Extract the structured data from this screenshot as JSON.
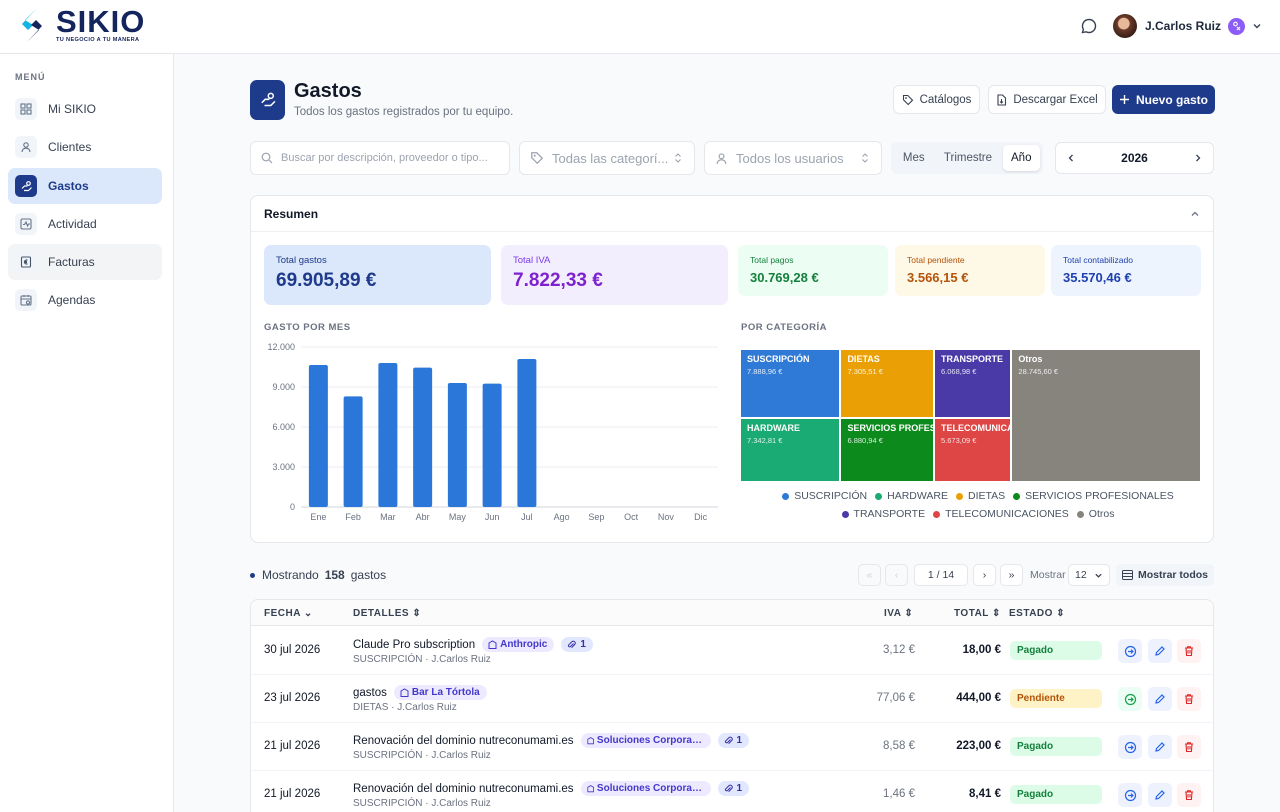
{
  "brand": {
    "name": "SIKIO",
    "tagline": "TU NEGOCIO A TU MANERA"
  },
  "user": {
    "name": "J.Carlos Ruiz"
  },
  "sidebar": {
    "title": "MENÚ",
    "items": [
      {
        "label": "Mi SIKIO",
        "icon": "grid-icon"
      },
      {
        "label": "Clientes",
        "icon": "user-icon"
      },
      {
        "label": "Gastos",
        "icon": "expense-icon",
        "active": true
      },
      {
        "label": "Actividad",
        "icon": "activity-icon"
      },
      {
        "label": "Facturas",
        "icon": "invoice-icon"
      },
      {
        "label": "Agendas",
        "icon": "calendar-icon"
      }
    ]
  },
  "page": {
    "title": "Gastos",
    "subtitle": "Todos los gastos registrados por tu equipo."
  },
  "actions": {
    "catalogos": "Catálogos",
    "excel": "Descargar Excel",
    "nuevo": "Nuevo gasto"
  },
  "filters": {
    "search_placeholder": "Buscar por descripción, proveedor o tipo...",
    "category": "Todas las categorí...",
    "users": "Todos los usuarios",
    "periods": [
      "Mes",
      "Trimestre",
      "Año"
    ],
    "active_period": "Año",
    "year": "2026"
  },
  "summary": {
    "title": "Resumen",
    "cards": [
      {
        "label": "Total gastos",
        "value": "69.905,89 €"
      },
      {
        "label": "Total IVA",
        "value": "7.822,33 €"
      },
      {
        "label": "Total pagos",
        "value": "30.769,28 €"
      },
      {
        "label": "Total pendiente",
        "value": "3.566,15 €"
      },
      {
        "label": "Total contabilizado",
        "value": "35.570,46 €"
      }
    ],
    "bar_title": "GASTO POR MES",
    "treemap_title": "POR CATEGORÍA"
  },
  "chart_data": [
    {
      "type": "bar",
      "title": "GASTO POR MES",
      "categories": [
        "Ene",
        "Feb",
        "Mar",
        "Abr",
        "May",
        "Jun",
        "Jul",
        "Ago",
        "Sep",
        "Oct",
        "Nov",
        "Dic"
      ],
      "values": [
        10650,
        8300,
        10800,
        10450,
        9300,
        9250,
        11100,
        0,
        0,
        0,
        0,
        0
      ],
      "ylim": [
        0,
        12000
      ],
      "yticks": [
        "0",
        "3.000",
        "6.000",
        "9.000",
        "12.000"
      ],
      "grid": true,
      "color": "#2b77d9"
    },
    {
      "type": "treemap",
      "title": "POR CATEGORÍA",
      "items": [
        {
          "name": "SUSCRIPCIÓN",
          "value": "7.888,96 €",
          "amount": 7888.96,
          "color": "#2f7ad6"
        },
        {
          "name": "DIETAS",
          "value": "7.305,51 €",
          "amount": 7305.51,
          "color": "#eaa005"
        },
        {
          "name": "TRANSPORTE",
          "value": "6.068,98 €",
          "amount": 6068.98,
          "color": "#4a3aa8"
        },
        {
          "name": "Otros",
          "value": "28.745,60 €",
          "amount": 28745.6,
          "color": "#87847e"
        },
        {
          "name": "HARDWARE",
          "value": "7.342,81 €",
          "amount": 7342.81,
          "color": "#1aaa74"
        },
        {
          "name": "SERVICIOS PROFESIONALES",
          "value": "6.880,94 €",
          "amount": 6880.94,
          "color": "#0c8a1c"
        },
        {
          "name": "TELECOMUNICACIONES",
          "value": "5.673,09 €",
          "amount": 5673.09,
          "color": "#de4545"
        }
      ],
      "legend": [
        "SUSCRIPCIÓN",
        "HARDWARE",
        "DIETAS",
        "SERVICIOS PROFESIONALES",
        "TRANSPORTE",
        "TELECOMUNICACIONES",
        "Otros"
      ],
      "legend_placement": "bottom"
    }
  ],
  "list": {
    "showing": "Mostrando",
    "count": "158",
    "unit": "gastos",
    "page": "1 / 14",
    "show_label": "Mostrar",
    "per_page": "12",
    "show_all": "Mostrar todos"
  },
  "table": {
    "headers": {
      "fecha": "FECHA",
      "detalles": "DETALLES",
      "iva": "IVA",
      "total": "TOTAL",
      "estado": "ESTADO"
    },
    "rows": [
      {
        "date": "30 jul 2026",
        "desc": "Claude Pro subscription",
        "provider": "Anthropic",
        "attachments": "1",
        "meta": "SUSCRIPCIÓN · J.Carlos Ruiz",
        "iva": "3,12 €",
        "total": "18,00 €",
        "status": "Pagado"
      },
      {
        "date": "23 jul 2026",
        "desc": "gastos",
        "provider": "Bar La Tórtola",
        "attachments": "",
        "meta": "DIETAS · J.Carlos Ruiz",
        "iva": "77,06 €",
        "total": "444,00 €",
        "status": "Pendiente"
      },
      {
        "date": "21 jul 2026",
        "desc": "Renovación del dominio nutreconumami.es",
        "provider": "Soluciones Corporativas IP",
        "attachments": "1",
        "meta": "SUSCRIPCIÓN · J.Carlos Ruiz",
        "iva": "8,58 €",
        "total": "223,00 €",
        "status": "Pagado"
      },
      {
        "date": "21 jul 2026",
        "desc": "Renovación del dominio nutreconumami.es",
        "provider": "Soluciones Corporativas IP",
        "attachments": "1",
        "meta": "SUSCRIPCIÓN · J.Carlos Ruiz",
        "iva": "1,46 €",
        "total": "8,41 €",
        "status": "Pagado"
      }
    ]
  }
}
